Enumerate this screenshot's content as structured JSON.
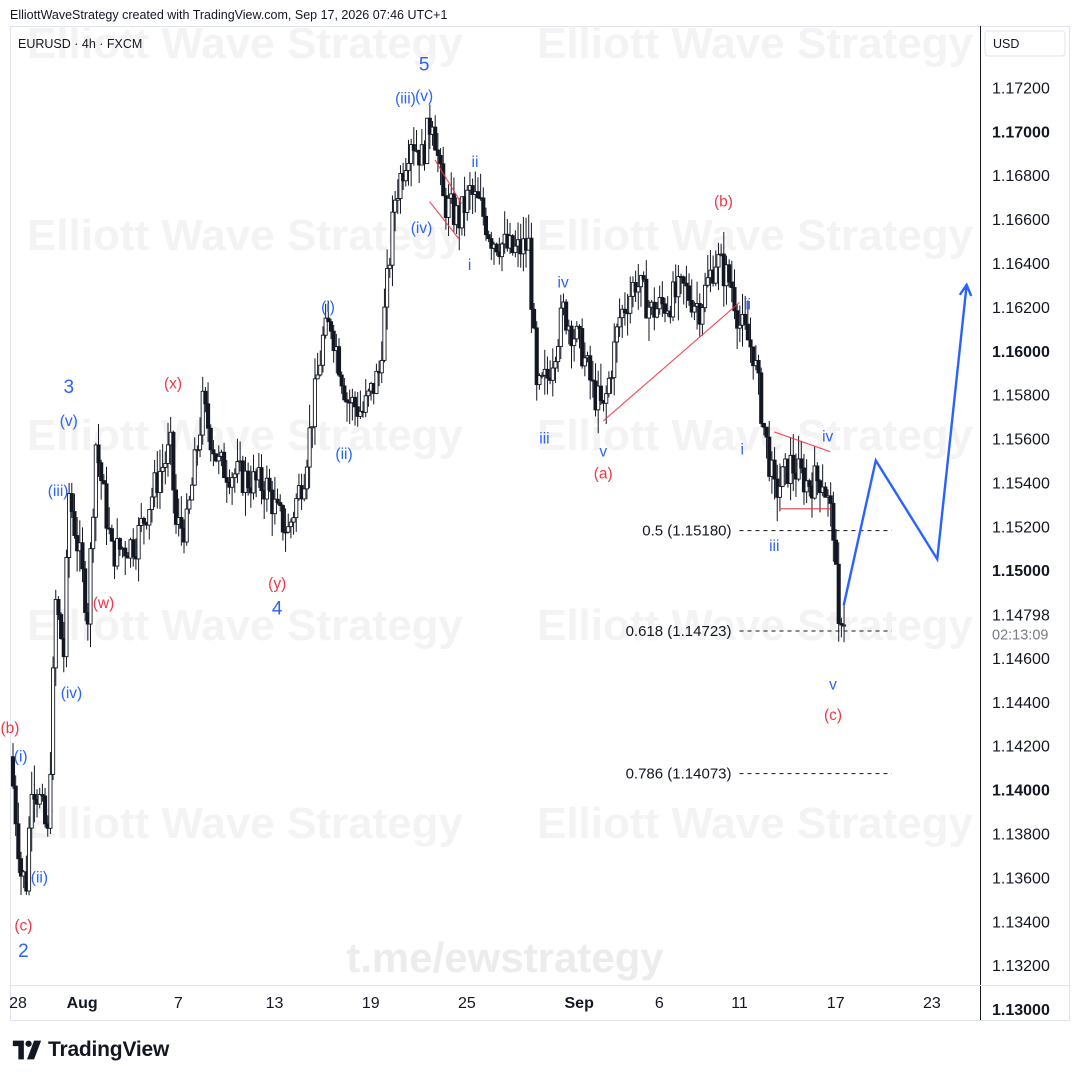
{
  "header": {
    "credit": "ElliottWaveStrategy created with TradingView.com, Sep 17, 2026 07:46 UTC+1"
  },
  "footer": {
    "brand": "TradingView"
  },
  "colors": {
    "blue": "#2962ff",
    "red": "#f23645",
    "candle": "#131722",
    "watermark": "#f3f3f3",
    "grid_text": "#131722"
  },
  "icons": [
    "tradingview-logo-icon"
  ],
  "chart_data": {
    "type": "candlestick",
    "symbol_label": "EURUSD · 4h · FXCM",
    "currency_label": "USD",
    "watermarks": [
      "Elliott Wave Strategy",
      "t.me/ewstrategy"
    ],
    "y_axis": {
      "range": [
        1.1295,
        1.1748
      ],
      "ticks": [
        {
          "value": 1.172,
          "label": "1.17200",
          "bold": false
        },
        {
          "value": 1.17,
          "label": "1.17000",
          "bold": true
        },
        {
          "value": 1.168,
          "label": "1.16800",
          "bold": false
        },
        {
          "value": 1.166,
          "label": "1.16600",
          "bold": false
        },
        {
          "value": 1.164,
          "label": "1.16400",
          "bold": false
        },
        {
          "value": 1.162,
          "label": "1.16200",
          "bold": false
        },
        {
          "value": 1.16,
          "label": "1.16000",
          "bold": true
        },
        {
          "value": 1.158,
          "label": "1.15800",
          "bold": false
        },
        {
          "value": 1.156,
          "label": "1.15600",
          "bold": false
        },
        {
          "value": 1.154,
          "label": "1.15400",
          "bold": false
        },
        {
          "value": 1.152,
          "label": "1.15200",
          "bold": false
        },
        {
          "value": 1.15,
          "label": "1.15000",
          "bold": true
        },
        {
          "value": 1.146,
          "label": "1.14600",
          "bold": false
        },
        {
          "value": 1.144,
          "label": "1.14400",
          "bold": false
        },
        {
          "value": 1.142,
          "label": "1.14200",
          "bold": false
        },
        {
          "value": 1.14,
          "label": "1.14000",
          "bold": true
        },
        {
          "value": 1.138,
          "label": "1.13800",
          "bold": false
        },
        {
          "value": 1.136,
          "label": "1.13600",
          "bold": false
        },
        {
          "value": 1.134,
          "label": "1.13400",
          "bold": false
        },
        {
          "value": 1.132,
          "label": "1.13200",
          "bold": false
        },
        {
          "value": 1.13,
          "label": "1.13000",
          "bold": true
        }
      ],
      "current_price": {
        "value": 1.14798,
        "label": "1.14798",
        "countdown": "02:13:09"
      }
    },
    "x_axis": {
      "range": [
        "2026-07-27T12:00",
        "2026-09-26T00:00"
      ],
      "ticks": [
        {
          "date": "2026-07-28",
          "label": "28",
          "bold": false
        },
        {
          "date": "2026-08-01",
          "label": "Aug",
          "bold": true
        },
        {
          "date": "2026-08-07",
          "label": "7",
          "bold": false
        },
        {
          "date": "2026-08-13",
          "label": "13",
          "bold": false
        },
        {
          "date": "2026-08-19",
          "label": "19",
          "bold": false
        },
        {
          "date": "2026-08-25",
          "label": "25",
          "bold": false
        },
        {
          "date": "2026-09-01",
          "label": "Sep",
          "bold": true
        },
        {
          "date": "2026-09-06",
          "label": "6",
          "bold": false
        },
        {
          "date": "2026-09-11",
          "label": "11",
          "bold": false
        },
        {
          "date": "2026-09-17",
          "label": "17",
          "bold": false
        },
        {
          "date": "2026-09-23",
          "label": "23",
          "bold": false
        }
      ]
    },
    "price_path": [
      {
        "date": "2026-07-27T12:00",
        "price": 1.1415
      },
      {
        "date": "2026-07-28T04:00",
        "price": 1.1362
      },
      {
        "date": "2026-07-28T12:00",
        "price": 1.1358
      },
      {
        "date": "2026-07-28T20:00",
        "price": 1.1405
      },
      {
        "date": "2026-07-29T08:00",
        "price": 1.1395
      },
      {
        "date": "2026-07-29T20:00",
        "price": 1.1378
      },
      {
        "date": "2026-07-30T08:00",
        "price": 1.1485
      },
      {
        "date": "2026-07-30T20:00",
        "price": 1.1462
      },
      {
        "date": "2026-07-31T04:00",
        "price": 1.1535
      },
      {
        "date": "2026-07-31T20:00",
        "price": 1.1505
      },
      {
        "date": "2026-08-01T08:00",
        "price": 1.148
      },
      {
        "date": "2026-08-01T20:00",
        "price": 1.1558
      },
      {
        "date": "2026-08-02T20:00",
        "price": 1.1508
      },
      {
        "date": "2026-08-04T08:00",
        "price": 1.1513
      },
      {
        "date": "2026-08-05T20:00",
        "price": 1.1545
      },
      {
        "date": "2026-08-06T12:00",
        "price": 1.1555
      },
      {
        "date": "2026-08-06T20:00",
        "price": 1.152
      },
      {
        "date": "2026-08-07T12:00",
        "price": 1.152
      },
      {
        "date": "2026-08-08T12:00",
        "price": 1.1575
      },
      {
        "date": "2026-08-09T12:00",
        "price": 1.1548
      },
      {
        "date": "2026-08-11T00:00",
        "price": 1.1542
      },
      {
        "date": "2026-08-12T12:00",
        "price": 1.1538
      },
      {
        "date": "2026-08-13T04:00",
        "price": 1.1525
      },
      {
        "date": "2026-08-13T20:00",
        "price": 1.1518
      },
      {
        "date": "2026-08-14T20:00",
        "price": 1.1545
      },
      {
        "date": "2026-08-16T00:00",
        "price": 1.1605
      },
      {
        "date": "2026-08-16T12:00",
        "price": 1.1613
      },
      {
        "date": "2026-08-17T12:00",
        "price": 1.1578
      },
      {
        "date": "2026-08-18T12:00",
        "price": 1.1572
      },
      {
        "date": "2026-08-19T12:00",
        "price": 1.159
      },
      {
        "date": "2026-08-20T12:00",
        "price": 1.167
      },
      {
        "date": "2026-08-21T12:00",
        "price": 1.1698
      },
      {
        "date": "2026-08-22T04:00",
        "price": 1.1688
      },
      {
        "date": "2026-08-22T20:00",
        "price": 1.1708
      },
      {
        "date": "2026-08-23T12:00",
        "price": 1.1668
      },
      {
        "date": "2026-08-24T12:00",
        "price": 1.166
      },
      {
        "date": "2026-08-25T04:00",
        "price": 1.1672
      },
      {
        "date": "2026-08-25T20:00",
        "price": 1.1665
      },
      {
        "date": "2026-08-26T12:00",
        "price": 1.1652
      },
      {
        "date": "2026-08-27T20:00",
        "price": 1.1645
      },
      {
        "date": "2026-08-28T20:00",
        "price": 1.1648
      },
      {
        "date": "2026-08-29T08:00",
        "price": 1.158
      },
      {
        "date": "2026-08-30T00:00",
        "price": 1.1588
      },
      {
        "date": "2026-08-31T00:00",
        "price": 1.1618
      },
      {
        "date": "2026-09-01T04:00",
        "price": 1.16
      },
      {
        "date": "2026-09-01T20:00",
        "price": 1.1582
      },
      {
        "date": "2026-09-02T12:00",
        "price": 1.1572
      },
      {
        "date": "2026-09-03T12:00",
        "price": 1.1615
      },
      {
        "date": "2026-09-04T12:00",
        "price": 1.1632
      },
      {
        "date": "2026-09-05T12:00",
        "price": 1.1618
      },
      {
        "date": "2026-09-06T12:00",
        "price": 1.1622
      },
      {
        "date": "2026-09-07T12:00",
        "price": 1.1628
      },
      {
        "date": "2026-09-08T12:00",
        "price": 1.162
      },
      {
        "date": "2026-09-09T12:00",
        "price": 1.1642
      },
      {
        "date": "2026-09-10T12:00",
        "price": 1.163
      },
      {
        "date": "2026-09-11T00:00",
        "price": 1.1612
      },
      {
        "date": "2026-09-11T20:00",
        "price": 1.16
      },
      {
        "date": "2026-09-12T12:00",
        "price": 1.1565
      },
      {
        "date": "2026-09-13T04:00",
        "price": 1.1535
      },
      {
        "date": "2026-09-14T04:00",
        "price": 1.1548
      },
      {
        "date": "2026-09-15T04:00",
        "price": 1.154
      },
      {
        "date": "2026-09-16T04:00",
        "price": 1.1542
      },
      {
        "date": "2026-09-16T20:00",
        "price": 1.152
      },
      {
        "date": "2026-09-17T04:00",
        "price": 1.147
      },
      {
        "date": "2026-09-17T08:00",
        "price": 1.1475
      }
    ],
    "markers": [
      {
        "date": "2026-07-28T20:00",
        "price": 1.1403,
        "type": "low",
        "kind": "low"
      }
    ],
    "fib_levels": [
      {
        "label": "0.5 (1.15180)",
        "value": 1.1518,
        "start": "2026-09-11T00:00",
        "end": "2026-09-20T12:00"
      },
      {
        "label": "0.618 (1.14723)",
        "value": 1.14723,
        "start": "2026-09-11T00:00",
        "end": "2026-09-20T12:00"
      },
      {
        "label": "0.786 (1.14073)",
        "value": 1.14073,
        "start": "2026-09-11T00:00",
        "end": "2026-09-20T12:00"
      }
    ],
    "wave_labels": [
      {
        "text": "(b)",
        "date": "2026-07-27T12:00",
        "price": 1.1428,
        "color": "red"
      },
      {
        "text": "(i)",
        "date": "2026-07-28T04:00",
        "price": 1.1415,
        "color": "blue"
      },
      {
        "text": "(ii)",
        "date": "2026-07-29T08:00",
        "price": 1.136,
        "color": "blue"
      },
      {
        "text": "(c)",
        "date": "2026-07-28T08:00",
        "price": 1.1338,
        "color": "red"
      },
      {
        "text": "2",
        "date": "2026-07-28T08:00",
        "price": 1.1326,
        "color": "blue",
        "size": "large"
      },
      {
        "text": "(iv)",
        "date": "2026-07-31T08:00",
        "price": 1.1444,
        "color": "blue"
      },
      {
        "text": "(iii)",
        "date": "2026-07-30T12:00",
        "price": 1.1536,
        "color": "blue"
      },
      {
        "text": "(v)",
        "date": "2026-07-31T04:00",
        "price": 1.1568,
        "color": "blue"
      },
      {
        "text": "3",
        "date": "2026-07-31T04:00",
        "price": 1.1583,
        "color": "blue",
        "size": "large"
      },
      {
        "text": "(w)",
        "date": "2026-08-02T08:00",
        "price": 1.1485,
        "color": "red"
      },
      {
        "text": "(x)",
        "date": "2026-08-06T16:00",
        "price": 1.1585,
        "color": "red"
      },
      {
        "text": "(y)",
        "date": "2026-08-13T04:00",
        "price": 1.1494,
        "color": "red"
      },
      {
        "text": "4",
        "date": "2026-08-13T04:00",
        "price": 1.1482,
        "color": "blue",
        "size": "large"
      },
      {
        "text": "(i)",
        "date": "2026-08-16T08:00",
        "price": 1.162,
        "color": "blue"
      },
      {
        "text": "(ii)",
        "date": "2026-08-17T08:00",
        "price": 1.1553,
        "color": "blue"
      },
      {
        "text": "(iii)",
        "date": "2026-08-21T04:00",
        "price": 1.1715,
        "color": "blue"
      },
      {
        "text": "(v)",
        "date": "2026-08-22T08:00",
        "price": 1.1716,
        "color": "blue"
      },
      {
        "text": "5",
        "date": "2026-08-22T08:00",
        "price": 1.173,
        "color": "blue",
        "size": "large"
      },
      {
        "text": "(iv)",
        "date": "2026-08-22T04:00",
        "price": 1.1656,
        "color": "blue"
      },
      {
        "text": "ii",
        "date": "2026-08-25T12:00",
        "price": 1.1686,
        "color": "blue"
      },
      {
        "text": "i",
        "date": "2026-08-25T04:00",
        "price": 1.1639,
        "color": "blue"
      },
      {
        "text": "iv",
        "date": "2026-08-31T00:00",
        "price": 1.1631,
        "color": "blue"
      },
      {
        "text": "iii",
        "date": "2026-08-29T20:00",
        "price": 1.156,
        "color": "blue"
      },
      {
        "text": "v",
        "date": "2026-09-02T12:00",
        "price": 1.1554,
        "color": "blue"
      },
      {
        "text": "(a)",
        "date": "2026-09-02T12:00",
        "price": 1.1544,
        "color": "red"
      },
      {
        "text": "(b)",
        "date": "2026-09-10T00:00",
        "price": 1.1668,
        "color": "red"
      },
      {
        "text": "ii",
        "date": "2026-09-11T12:00",
        "price": 1.1621,
        "color": "blue"
      },
      {
        "text": "i",
        "date": "2026-09-11T04:00",
        "price": 1.1555,
        "color": "blue"
      },
      {
        "text": "iii",
        "date": "2026-09-13T04:00",
        "price": 1.1511,
        "color": "blue"
      },
      {
        "text": "iv",
        "date": "2026-09-16T12:00",
        "price": 1.1561,
        "color": "blue"
      },
      {
        "text": "v",
        "date": "2026-09-16T20:00",
        "price": 1.1448,
        "color": "blue"
      },
      {
        "text": "(c)",
        "date": "2026-09-16T20:00",
        "price": 1.1434,
        "color": "red"
      }
    ],
    "trend_lines": [
      {
        "color": "red",
        "points": [
          {
            "date": "2026-08-23T00:00",
            "price": 1.1687
          },
          {
            "date": "2026-08-24T16:00",
            "price": 1.1667
          }
        ]
      },
      {
        "color": "red",
        "points": [
          {
            "date": "2026-08-22T16:00",
            "price": 1.1668
          },
          {
            "date": "2026-08-24T12:00",
            "price": 1.1651
          }
        ]
      },
      {
        "color": "red",
        "points": [
          {
            "date": "2026-09-02T12:00",
            "price": 1.1568
          },
          {
            "date": "2026-09-11T00:00",
            "price": 1.1622
          }
        ]
      },
      {
        "color": "red",
        "points": [
          {
            "date": "2026-09-13T04:00",
            "price": 1.1563
          },
          {
            "date": "2026-09-16T16:00",
            "price": 1.1554
          }
        ]
      },
      {
        "color": "red",
        "points": [
          {
            "date": "2026-09-13T12:00",
            "price": 1.1528
          },
          {
            "date": "2026-09-16T16:00",
            "price": 1.1528
          }
        ]
      }
    ],
    "projection": {
      "color": "blue",
      "points": [
        {
          "date": "2026-09-17T12:00",
          "price": 1.1484
        },
        {
          "date": "2026-09-19T12:00",
          "price": 1.155
        },
        {
          "date": "2026-09-23T08:00",
          "price": 1.1505
        },
        {
          "date": "2026-09-25T04:00",
          "price": 1.163
        }
      ]
    }
  }
}
